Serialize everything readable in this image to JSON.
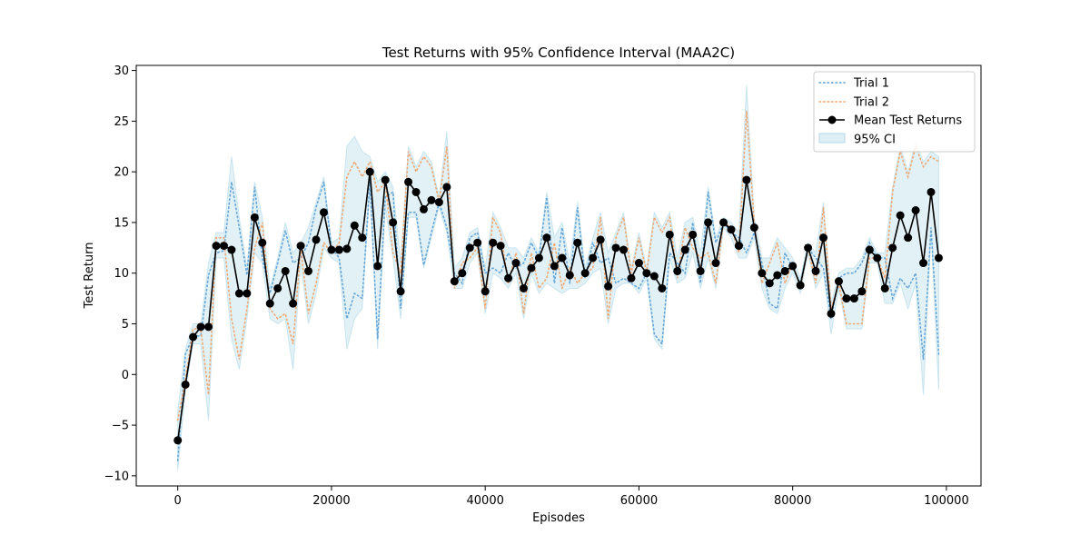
{
  "chart_data": {
    "type": "line",
    "title": "Test Returns with 95% Confidence Interval (MAA2C)",
    "xlabel": "Episodes",
    "ylabel": "Test Return",
    "xlim": [
      -5400,
      104500
    ],
    "ylim": [
      -11,
      30.5
    ],
    "xticks": [
      0,
      20000,
      40000,
      60000,
      80000,
      100000
    ],
    "xtick_labels": [
      "0",
      "20000",
      "40000",
      "60000",
      "80000",
      "100000"
    ],
    "yticks": [
      -10,
      -5,
      0,
      5,
      10,
      15,
      20,
      25,
      30
    ],
    "ytick_labels": [
      "−10",
      "−5",
      "0",
      "5",
      "10",
      "15",
      "20",
      "25",
      "30"
    ],
    "grid": false,
    "legend_position": "top-right",
    "x_step": 1000,
    "colors": {
      "trial1": "#5a9fd4",
      "trial2": "#f0a36b",
      "mean": "#000000",
      "ci": "#add8e6"
    },
    "legend": [
      "Trial 1",
      "Trial 2",
      "Mean Test Returns",
      "95% CI"
    ],
    "series": [
      {
        "name": "Trial 1",
        "style": "dotted",
        "values": [
          -8.5,
          2.0,
          3.8,
          3.8,
          9.8,
          12.0,
          12.2,
          19.0,
          14.5,
          9.8,
          18.5,
          11.5,
          8.0,
          11.0,
          14.2,
          11.0,
          11.5,
          13.0,
          16.5,
          19.0,
          12.5,
          11.5,
          5.5,
          8.0,
          7.5,
          19.0,
          3.5,
          17.5,
          18.0,
          6.5,
          16.0,
          16.0,
          10.8,
          14.0,
          17.0,
          14.5,
          10.0,
          9.0,
          13.5,
          14.0,
          10.0,
          10.5,
          10.0,
          12.0,
          10.5,
          11.0,
          13.0,
          11.5,
          17.5,
          9.0,
          14.5,
          9.0,
          16.5,
          9.5,
          13.0,
          11.0,
          11.5,
          9.0,
          9.5,
          9.0,
          8.5,
          10.0,
          4.0,
          3.0,
          12.0,
          11.0,
          10.0,
          15.0,
          9.0,
          18.0,
          13.0,
          15.0,
          14.0,
          13.5,
          12.0,
          14.0,
          11.0,
          7.0,
          6.5,
          12.0,
          10.5,
          9.0,
          12.5,
          11.5,
          10.5,
          5.5,
          9.5,
          10.0,
          10.0,
          11.0,
          13.0,
          11.5,
          11.5,
          7.5,
          9.5,
          8.5,
          10.0,
          1.5,
          14.5,
          2.0
        ]
      },
      {
        "name": "Trial 2",
        "style": "dotted",
        "values": [
          -4.5,
          -0.5,
          4.5,
          4.5,
          -2.0,
          13.5,
          13.5,
          5.5,
          1.5,
          6.5,
          12.5,
          15.0,
          6.5,
          5.5,
          6.0,
          3.0,
          12.5,
          6.0,
          9.0,
          13.0,
          12.0,
          13.0,
          19.5,
          21.0,
          19.5,
          21.0,
          18.0,
          19.0,
          12.0,
          10.0,
          22.0,
          20.0,
          21.5,
          20.5,
          17.0,
          22.5,
          8.5,
          11.0,
          11.5,
          12.5,
          6.5,
          15.5,
          14.0,
          9.0,
          12.0,
          6.0,
          12.0,
          8.5,
          9.5,
          13.0,
          8.5,
          10.5,
          9.0,
          10.0,
          10.5,
          15.5,
          5.5,
          13.5,
          15.5,
          10.0,
          13.5,
          10.0,
          15.5,
          14.0,
          15.5,
          9.5,
          14.5,
          12.5,
          11.5,
          12.0,
          9.0,
          15.0,
          14.5,
          12.0,
          26.0,
          15.0,
          9.0,
          11.0,
          13.0,
          9.0,
          11.0,
          8.5,
          12.5,
          9.0,
          16.5,
          6.5,
          9.0,
          5.0,
          5.0,
          5.0,
          11.5,
          11.5,
          9.5,
          18.0,
          22.0,
          19.5,
          22.5,
          20.5,
          21.5,
          21.0
        ]
      },
      {
        "name": "Mean Test Returns",
        "style": "solid-markers",
        "values": [
          -6.5,
          -1.0,
          3.7,
          4.7,
          4.7,
          12.7,
          12.7,
          12.3,
          8.0,
          8.0,
          15.5,
          13.0,
          7.0,
          8.5,
          10.2,
          7.0,
          12.7,
          10.2,
          13.3,
          16.0,
          12.3,
          12.3,
          12.4,
          14.7,
          13.5,
          20.0,
          10.7,
          19.2,
          15.0,
          8.2,
          19.0,
          18.0,
          16.3,
          17.2,
          17.0,
          18.5,
          9.2,
          10.0,
          12.5,
          13.0,
          8.2,
          13.0,
          12.7,
          9.5,
          11.0,
          8.5,
          10.5,
          11.5,
          13.5,
          10.7,
          11.5,
          9.8,
          13.0,
          10.0,
          11.5,
          13.3,
          8.7,
          12.5,
          12.3,
          9.5,
          11.0,
          10.0,
          9.7,
          8.5,
          13.8,
          10.2,
          12.3,
          13.8,
          10.2,
          15.0,
          11.0,
          15.0,
          14.3,
          12.7,
          19.2,
          14.5,
          10.0,
          9.0,
          9.8,
          10.2,
          10.7,
          8.8,
          12.5,
          10.2,
          13.5,
          6.0,
          9.2,
          7.5,
          7.5,
          8.2,
          12.3,
          11.5,
          8.5,
          12.5,
          15.7,
          13.5,
          16.2,
          11.0,
          18.0,
          11.5
        ]
      }
    ],
    "ci_band": {
      "name": "95% CI",
      "lower": [
        -9.5,
        -1.5,
        3.0,
        3.0,
        -4.5,
        11.5,
        11.5,
        3.5,
        0.5,
        5.5,
        12.0,
        11.0,
        5.5,
        5.0,
        5.5,
        0.5,
        11.0,
        5.0,
        8.0,
        12.5,
        11.5,
        11.0,
        2.5,
        5.5,
        6.5,
        18.5,
        2.5,
        16.5,
        11.5,
        5.5,
        15.5,
        15.5,
        10.5,
        13.5,
        16.5,
        14.0,
        8.5,
        8.5,
        11.0,
        12.0,
        6.0,
        10.0,
        9.5,
        8.5,
        10.0,
        5.5,
        10.0,
        8.0,
        9.0,
        8.5,
        8.0,
        8.5,
        8.5,
        9.0,
        10.0,
        10.5,
        5.0,
        8.5,
        9.0,
        9.0,
        8.0,
        9.5,
        3.5,
        2.5,
        11.5,
        9.0,
        9.5,
        12.0,
        8.5,
        11.5,
        8.5,
        14.5,
        13.5,
        11.5,
        11.5,
        13.5,
        8.5,
        6.5,
        6.0,
        8.5,
        10.0,
        8.0,
        12.0,
        8.5,
        10.0,
        4.0,
        8.5,
        4.5,
        4.5,
        4.5,
        11.0,
        11.0,
        7.0,
        7.0,
        9.0,
        6.5,
        9.0,
        -2.0,
        14.0,
        -1.5
      ],
      "upper": [
        -3.5,
        2.5,
        5.0,
        5.0,
        11.0,
        14.0,
        14.0,
        21.5,
        15.5,
        10.5,
        19.0,
        15.5,
        8.5,
        11.5,
        15.0,
        12.0,
        13.0,
        14.5,
        17.0,
        19.5,
        13.0,
        13.5,
        22.5,
        23.5,
        22.0,
        21.5,
        19.0,
        20.0,
        18.5,
        11.0,
        22.5,
        20.5,
        22.0,
        21.0,
        17.5,
        24.0,
        10.5,
        11.5,
        14.0,
        14.5,
        10.5,
        16.0,
        14.5,
        12.5,
        12.5,
        11.5,
        13.5,
        12.0,
        18.0,
        13.5,
        15.0,
        11.0,
        17.0,
        10.5,
        13.5,
        16.0,
        12.0,
        14.0,
        16.0,
        10.5,
        14.0,
        10.5,
        16.0,
        14.5,
        16.0,
        11.5,
        15.0,
        15.5,
        12.0,
        18.5,
        13.5,
        15.5,
        15.0,
        14.0,
        28.5,
        15.5,
        11.5,
        11.5,
        13.5,
        12.5,
        11.5,
        9.5,
        13.0,
        12.0,
        17.0,
        7.0,
        10.0,
        10.5,
        10.5,
        11.5,
        13.5,
        12.0,
        12.0,
        18.5,
        22.5,
        20.0,
        23.0,
        21.0,
        22.0,
        21.5
      ]
    }
  }
}
